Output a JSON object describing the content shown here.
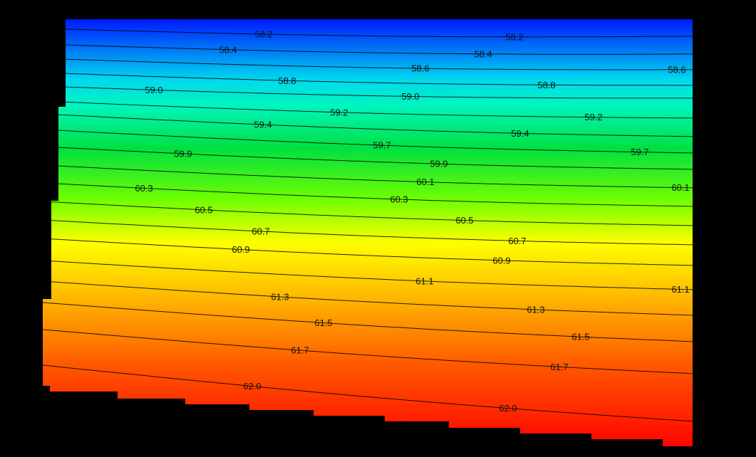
{
  "chart_data": {
    "type": "heatmap",
    "subtype": "contour",
    "title": "",
    "xlabel": "",
    "ylabel": "",
    "grid": false,
    "legend": "none",
    "colormap": [
      "#0000ff",
      "#00ffcc",
      "#00e000",
      "#ffff00",
      "#ff8800",
      "#ff0000"
    ],
    "value_range": [
      58.0,
      62.2
    ],
    "contours": [
      {
        "level": "58.2",
        "labels": [
          "58.2",
          "58.2"
        ]
      },
      {
        "level": "58.4",
        "labels": [
          "58.4",
          "58.4"
        ]
      },
      {
        "level": "58.6",
        "labels": [
          "58.6",
          "58.6"
        ]
      },
      {
        "level": "58.8",
        "labels": [
          "58.8",
          "58.8"
        ]
      },
      {
        "level": "59.0",
        "labels": [
          "59.0",
          "59.0"
        ]
      },
      {
        "level": "59.2",
        "labels": [
          "59.2",
          "59.2"
        ]
      },
      {
        "level": "59.4",
        "labels": [
          "59.4",
          "59.4"
        ]
      },
      {
        "level": "59.7",
        "labels": [
          "59.7",
          "59.7"
        ]
      },
      {
        "level": "59.9",
        "labels": [
          "59.9",
          "59.9"
        ]
      },
      {
        "level": "60.1",
        "labels": [
          "60.1",
          "60.1"
        ]
      },
      {
        "level": "60.3",
        "labels": [
          "60.3",
          "60.3"
        ]
      },
      {
        "level": "60.5",
        "labels": [
          "60.5",
          "60.5"
        ]
      },
      {
        "level": "60.7",
        "labels": [
          "60.7",
          "60.7"
        ]
      },
      {
        "level": "60.9",
        "labels": [
          "60.9",
          "60.9"
        ]
      },
      {
        "level": "61.1",
        "labels": [
          "61.1",
          "61.1"
        ]
      },
      {
        "level": "61.3",
        "labels": [
          "61.3",
          "61.3"
        ]
      },
      {
        "level": "61.5",
        "labels": [
          "61.5",
          "61.5"
        ]
      },
      {
        "level": "61.7",
        "labels": [
          "61.7",
          "61.7"
        ]
      },
      {
        "level": "62.0",
        "labels": [
          "62.0",
          "62.0"
        ]
      }
    ]
  }
}
